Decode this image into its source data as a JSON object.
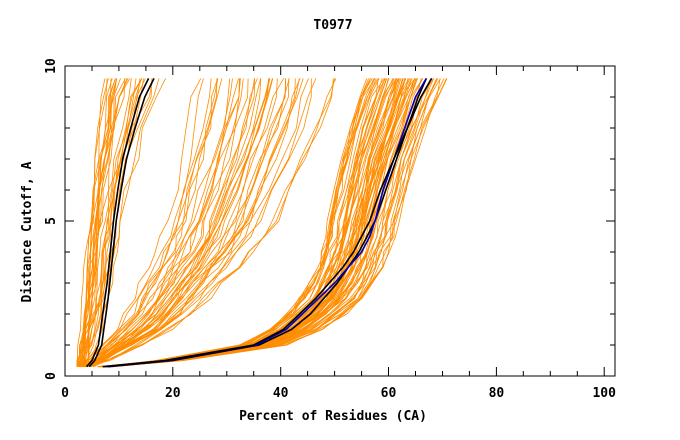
{
  "chart_data": {
    "type": "line",
    "title": "T0977",
    "xlabel": "Percent of Residues (CA)",
    "ylabel": "Distance Cutoff, A",
    "xlim": [
      0,
      102
    ],
    "ylim": [
      0,
      10
    ],
    "x_ticks": [
      0,
      20,
      40,
      60,
      80,
      100
    ],
    "y_ticks": [
      0,
      5,
      10
    ],
    "x_tick_labels": [
      "0",
      "20",
      "40",
      "60",
      "80",
      "100"
    ],
    "y_tick_labels": [
      "0",
      "5",
      "10"
    ],
    "grid": false,
    "legend": "none",
    "colors": {
      "models": "#ff8c00",
      "highlight_black": "#000000",
      "highlight_blue": "#0000c0"
    },
    "y_levels": [
      0.3,
      0.5,
      1.0,
      1.5,
      2.0,
      2.5,
      3.0,
      3.5,
      4.0,
      4.5,
      5.0,
      6.0,
      7.0,
      8.0,
      9.0,
      9.6
    ],
    "series": [
      {
        "name": "model-group-steep",
        "group": "steep",
        "color": "#ff8c00",
        "count": 28,
        "x": [
          2.5,
          3.5,
          4.5,
          5.0,
          5.5,
          6.0,
          6.5,
          6.8,
          7.2,
          7.6,
          8.0,
          9.0,
          10.0,
          11.5,
          13.0,
          14.0
        ]
      },
      {
        "name": "model-group-middle",
        "group": "middle",
        "color": "#ff8c00",
        "count": 42,
        "x": [
          4.0,
          6.0,
          10.0,
          14.0,
          17.0,
          19.0,
          21.0,
          23.0,
          25.0,
          26.5,
          28.0,
          30.0,
          32.0,
          34.0,
          35.5,
          36.0
        ]
      },
      {
        "name": "model-group-shallow",
        "group": "shallow",
        "color": "#ff8c00",
        "count": 70,
        "x": [
          7.5,
          20.0,
          38.0,
          44.0,
          48.0,
          51.0,
          53.0,
          54.5,
          55.5,
          56.5,
          57.0,
          58.5,
          60.0,
          62.0,
          64.0,
          65.5
        ]
      },
      {
        "name": "highlight-model-left-1",
        "color": "#000000",
        "x": [
          4.0,
          5.0,
          6.2,
          6.6,
          7.0,
          7.4,
          7.8,
          8.1,
          8.4,
          8.7,
          9.0,
          9.8,
          10.7,
          12.2,
          13.8,
          15.5
        ]
      },
      {
        "name": "highlight-model-left-2",
        "color": "#000000",
        "x": [
          4.5,
          5.5,
          6.8,
          7.2,
          7.6,
          8.0,
          8.3,
          8.6,
          8.9,
          9.2,
          9.5,
          10.4,
          11.4,
          13.0,
          14.8,
          16.5
        ]
      },
      {
        "name": "highlight-model-right-1",
        "color": "#000000",
        "x": [
          8.0,
          20.0,
          36.0,
          42.0,
          45.5,
          48.0,
          50.5,
          52.5,
          54.5,
          56.0,
          57.5,
          59.5,
          61.5,
          63.5,
          65.5,
          67.0
        ]
      },
      {
        "name": "highlight-model-right-2",
        "color": "#0000c0",
        "x": [
          7.5,
          19.0,
          35.5,
          41.0,
          44.0,
          47.0,
          50.0,
          52.5,
          55.0,
          56.5,
          57.5,
          59.0,
          61.0,
          63.0,
          65.0,
          67.0
        ]
      },
      {
        "name": "highlight-model-right-3",
        "color": "#000000",
        "x": [
          7.0,
          18.5,
          35.0,
          40.5,
          43.5,
          46.5,
          49.0,
          51.5,
          53.5,
          55.0,
          56.5,
          58.5,
          61.0,
          63.5,
          66.0,
          68.0
        ]
      }
    ]
  }
}
